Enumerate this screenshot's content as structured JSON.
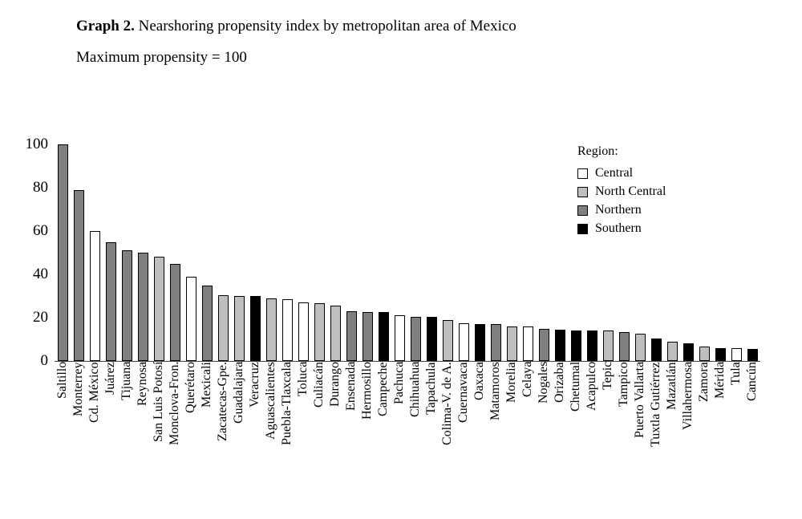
{
  "title": {
    "prefix": "Graph 2.",
    "text": " Nearshoring propensity index by metropolitan area of Mexico",
    "subtitle": "Maximum propensity = 100"
  },
  "legend": {
    "title": "Region:",
    "items": [
      {
        "label": "Central",
        "color": "#ffffff"
      },
      {
        "label": "North Central",
        "color": "#bfbfbf"
      },
      {
        "label": "Northern",
        "color": "#7f7f7f"
      },
      {
        "label": "Southern",
        "color": "#000000"
      }
    ]
  },
  "chart_data": {
    "type": "bar",
    "title": "Graph 2. Nearshoring propensity index by metropolitan area of Mexico",
    "subtitle": "Maximum propensity = 100",
    "ylabel": "",
    "xlabel": "",
    "ylim": [
      0,
      100
    ],
    "yticks": [
      0,
      20,
      40,
      60,
      80,
      100
    ],
    "grid": false,
    "legend_position": "top-right",
    "region_colors": {
      "Central": "#ffffff",
      "North Central": "#bfbfbf",
      "Northern": "#7f7f7f",
      "Southern": "#000000"
    },
    "bars": [
      {
        "city": "Saltillo",
        "value": 100,
        "region": "Northern"
      },
      {
        "city": "Monterrey",
        "value": 79,
        "region": "Northern"
      },
      {
        "city": "Cd. México",
        "value": 60,
        "region": "Central"
      },
      {
        "city": "Juárez",
        "value": 55,
        "region": "Northern"
      },
      {
        "city": "Tijuana",
        "value": 51,
        "region": "Northern"
      },
      {
        "city": "Reynosa",
        "value": 50,
        "region": "Northern"
      },
      {
        "city": "San Luis Potosí",
        "value": 48,
        "region": "North Central"
      },
      {
        "city": "Monclova-Fron.",
        "value": 45,
        "region": "Northern"
      },
      {
        "city": "Querétaro",
        "value": 39,
        "region": "Central"
      },
      {
        "city": "Mexicali",
        "value": 35,
        "region": "Northern"
      },
      {
        "city": "Zacatecas-Gpe.",
        "value": 30.5,
        "region": "North Central"
      },
      {
        "city": "Guadalajara",
        "value": 30,
        "region": "North Central"
      },
      {
        "city": "Veracruz",
        "value": 30,
        "region": "Southern"
      },
      {
        "city": "Aguascalientes",
        "value": 29,
        "region": "North Central"
      },
      {
        "city": "Puebla-Tlaxcala",
        "value": 28.5,
        "region": "Central"
      },
      {
        "city": "Toluca",
        "value": 27,
        "region": "Central"
      },
      {
        "city": "Culiacán",
        "value": 26.5,
        "region": "North Central"
      },
      {
        "city": "Durango",
        "value": 25.5,
        "region": "North Central"
      },
      {
        "city": "Ensenada",
        "value": 23,
        "region": "Northern"
      },
      {
        "city": "Hermosillo",
        "value": 22.5,
        "region": "Northern"
      },
      {
        "city": "Campeche",
        "value": 22.5,
        "region": "Southern"
      },
      {
        "city": "Pachuca",
        "value": 21,
        "region": "Central"
      },
      {
        "city": "Chihuahua",
        "value": 20.5,
        "region": "Northern"
      },
      {
        "city": "Tapachula",
        "value": 20.5,
        "region": "Southern"
      },
      {
        "city": "Colima-V. de A.",
        "value": 19,
        "region": "North Central"
      },
      {
        "city": "Cuernavaca",
        "value": 17.5,
        "region": "Central"
      },
      {
        "city": "Oaxaca",
        "value": 17,
        "region": "Southern"
      },
      {
        "city": "Matamoros",
        "value": 17,
        "region": "Northern"
      },
      {
        "city": "Morelia",
        "value": 16,
        "region": "North Central"
      },
      {
        "city": "Celaya",
        "value": 16,
        "region": "Central"
      },
      {
        "city": "Nogales",
        "value": 15,
        "region": "Northern"
      },
      {
        "city": "Orizaba",
        "value": 14.5,
        "region": "Southern"
      },
      {
        "city": "Chetumal",
        "value": 14,
        "region": "Southern"
      },
      {
        "city": "Acapulco",
        "value": 14,
        "region": "Southern"
      },
      {
        "city": "Tepic",
        "value": 14,
        "region": "North Central"
      },
      {
        "city": "Tampico",
        "value": 13.5,
        "region": "Northern"
      },
      {
        "city": "Puerto Vallarta",
        "value": 12.5,
        "region": "North Central"
      },
      {
        "city": "Tuxtla Gutiérrez",
        "value": 10.5,
        "region": "Southern"
      },
      {
        "city": "Mazatlán",
        "value": 9,
        "region": "North Central"
      },
      {
        "city": "Villahermosa",
        "value": 8,
        "region": "Southern"
      },
      {
        "city": "Zamora",
        "value": 6.5,
        "region": "North Central"
      },
      {
        "city": "Mérida",
        "value": 6,
        "region": "Southern"
      },
      {
        "city": "Tula",
        "value": 6,
        "region": "Central"
      },
      {
        "city": "Cancún",
        "value": 5.5,
        "region": "Southern"
      }
    ]
  }
}
